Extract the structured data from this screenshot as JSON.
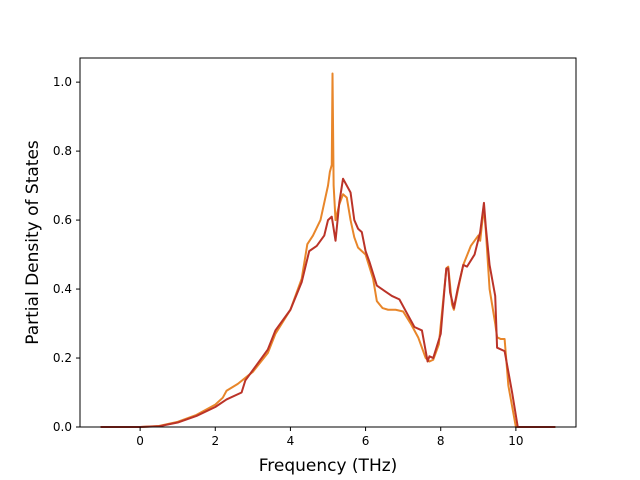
{
  "chart_data": {
    "type": "line",
    "title": "",
    "xlabel": "Frequency (THz)",
    "ylabel": "Partial Density of States",
    "xlim": [
      -1.6,
      11.6
    ],
    "ylim": [
      0,
      1.07
    ],
    "xticks": [
      0,
      2,
      4,
      6,
      8,
      10
    ],
    "yticks": [
      0.0,
      0.2,
      0.4,
      0.6,
      0.8,
      1.0
    ],
    "xtick_labels": [
      "0",
      "2",
      "4",
      "6",
      "8",
      "10"
    ],
    "ytick_labels": [
      "0.0",
      "0.2",
      "0.4",
      "0.6",
      "0.8",
      "1.0"
    ],
    "grid": false,
    "legend": "none",
    "series": [
      {
        "color": "#e8862a",
        "points": [
          [
            -1.05,
            0.0
          ],
          [
            0.0,
            0.0
          ],
          [
            0.5,
            0.003
          ],
          [
            1.0,
            0.015
          ],
          [
            1.5,
            0.035
          ],
          [
            2.0,
            0.065
          ],
          [
            2.2,
            0.085
          ],
          [
            2.3,
            0.105
          ],
          [
            2.6,
            0.125
          ],
          [
            3.0,
            0.16
          ],
          [
            3.4,
            0.215
          ],
          [
            3.6,
            0.27
          ],
          [
            4.0,
            0.34
          ],
          [
            4.3,
            0.43
          ],
          [
            4.45,
            0.53
          ],
          [
            4.6,
            0.555
          ],
          [
            4.8,
            0.6
          ],
          [
            5.0,
            0.7
          ],
          [
            5.05,
            0.74
          ],
          [
            5.1,
            0.76
          ],
          [
            5.12,
            1.025
          ],
          [
            5.15,
            0.7
          ],
          [
            5.2,
            0.6
          ],
          [
            5.3,
            0.645
          ],
          [
            5.4,
            0.675
          ],
          [
            5.5,
            0.665
          ],
          [
            5.6,
            0.6
          ],
          [
            5.7,
            0.55
          ],
          [
            5.8,
            0.52
          ],
          [
            5.9,
            0.51
          ],
          [
            6.0,
            0.5
          ],
          [
            6.2,
            0.43
          ],
          [
            6.3,
            0.365
          ],
          [
            6.45,
            0.345
          ],
          [
            6.6,
            0.34
          ],
          [
            6.8,
            0.34
          ],
          [
            7.0,
            0.335
          ],
          [
            7.2,
            0.3
          ],
          [
            7.4,
            0.26
          ],
          [
            7.6,
            0.2
          ],
          [
            7.7,
            0.19
          ],
          [
            7.8,
            0.195
          ],
          [
            7.95,
            0.24
          ],
          [
            8.05,
            0.35
          ],
          [
            8.15,
            0.46
          ],
          [
            8.2,
            0.465
          ],
          [
            8.3,
            0.355
          ],
          [
            8.35,
            0.34
          ],
          [
            8.5,
            0.42
          ],
          [
            8.6,
            0.47
          ],
          [
            8.8,
            0.525
          ],
          [
            9.0,
            0.555
          ],
          [
            9.05,
            0.54
          ],
          [
            9.1,
            0.59
          ],
          [
            9.15,
            0.635
          ],
          [
            9.2,
            0.57
          ],
          [
            9.3,
            0.4
          ],
          [
            9.45,
            0.3
          ],
          [
            9.5,
            0.26
          ],
          [
            9.6,
            0.255
          ],
          [
            9.7,
            0.255
          ],
          [
            9.8,
            0.12
          ],
          [
            10.0,
            0.0
          ],
          [
            11.05,
            0.0
          ]
        ]
      },
      {
        "color": "#bb3328",
        "points": [
          [
            -1.05,
            0.0
          ],
          [
            0.0,
            0.0
          ],
          [
            0.5,
            0.002
          ],
          [
            1.0,
            0.013
          ],
          [
            1.5,
            0.032
          ],
          [
            2.0,
            0.058
          ],
          [
            2.3,
            0.08
          ],
          [
            2.7,
            0.1
          ],
          [
            2.8,
            0.135
          ],
          [
            3.0,
            0.165
          ],
          [
            3.4,
            0.225
          ],
          [
            3.6,
            0.28
          ],
          [
            4.0,
            0.34
          ],
          [
            4.3,
            0.42
          ],
          [
            4.5,
            0.51
          ],
          [
            4.7,
            0.525
          ],
          [
            4.9,
            0.555
          ],
          [
            5.0,
            0.6
          ],
          [
            5.1,
            0.61
          ],
          [
            5.2,
            0.54
          ],
          [
            5.3,
            0.65
          ],
          [
            5.4,
            0.72
          ],
          [
            5.6,
            0.68
          ],
          [
            5.7,
            0.6
          ],
          [
            5.8,
            0.575
          ],
          [
            5.9,
            0.565
          ],
          [
            6.0,
            0.51
          ],
          [
            6.1,
            0.48
          ],
          [
            6.3,
            0.41
          ],
          [
            6.5,
            0.395
          ],
          [
            6.7,
            0.38
          ],
          [
            6.9,
            0.37
          ],
          [
            7.1,
            0.33
          ],
          [
            7.3,
            0.29
          ],
          [
            7.5,
            0.28
          ],
          [
            7.65,
            0.19
          ],
          [
            7.7,
            0.205
          ],
          [
            7.8,
            0.2
          ],
          [
            8.0,
            0.27
          ],
          [
            8.1,
            0.4
          ],
          [
            8.15,
            0.46
          ],
          [
            8.2,
            0.46
          ],
          [
            8.25,
            0.39
          ],
          [
            8.35,
            0.345
          ],
          [
            8.45,
            0.4
          ],
          [
            8.6,
            0.47
          ],
          [
            8.7,
            0.465
          ],
          [
            8.9,
            0.5
          ],
          [
            9.05,
            0.565
          ],
          [
            9.15,
            0.65
          ],
          [
            9.2,
            0.58
          ],
          [
            9.3,
            0.47
          ],
          [
            9.45,
            0.38
          ],
          [
            9.5,
            0.23
          ],
          [
            9.7,
            0.22
          ],
          [
            9.9,
            0.1
          ],
          [
            10.05,
            0.0
          ],
          [
            11.05,
            0.0
          ]
        ]
      }
    ]
  }
}
